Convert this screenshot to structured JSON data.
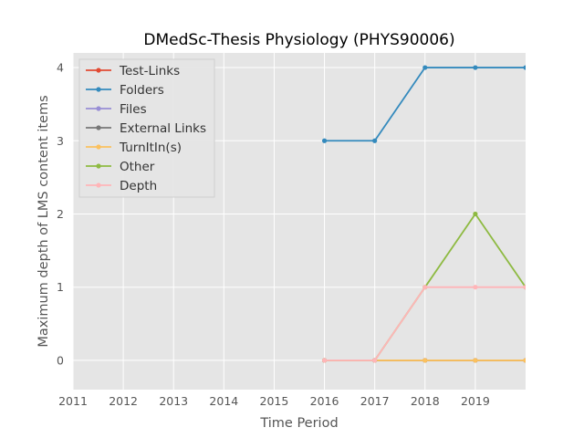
{
  "chart_data": {
    "type": "line",
    "title": "DMedSc-Thesis Physiology (PHYS90006)",
    "xlabel": "Time Period",
    "ylabel": "Maximum depth of LMS content items",
    "xlim": [
      2011,
      2020
    ],
    "ylim": [
      -0.4,
      4.2
    ],
    "xticks": [
      2011,
      2012,
      2013,
      2014,
      2015,
      2016,
      2017,
      2018,
      2019
    ],
    "yticks": [
      0,
      1,
      2,
      3,
      4
    ],
    "grid": true,
    "legend_position": "top-left",
    "x": [
      2016,
      2017,
      2018,
      2019,
      2020
    ],
    "series": [
      {
        "name": "Test-Links",
        "color": "#E24A33",
        "values": [
          0,
          0,
          0,
          0,
          0
        ]
      },
      {
        "name": "Folders",
        "color": "#348ABD",
        "values": [
          3,
          3,
          4,
          4,
          4
        ]
      },
      {
        "name": "Files",
        "color": "#988ED5",
        "values": [
          0,
          0,
          0,
          0,
          0
        ]
      },
      {
        "name": "External Links",
        "color": "#777777",
        "values": [
          0,
          0,
          0,
          0,
          0
        ]
      },
      {
        "name": "TurnItIn(s)",
        "color": "#FBC15E",
        "values": [
          0,
          0,
          0,
          0,
          0
        ]
      },
      {
        "name": "Other",
        "color": "#8EBA42",
        "values": [
          0,
          0,
          1,
          2,
          1
        ]
      },
      {
        "name": "Depth",
        "color": "#FFB5B8",
        "values": [
          0,
          0,
          1,
          1,
          1
        ]
      }
    ]
  }
}
